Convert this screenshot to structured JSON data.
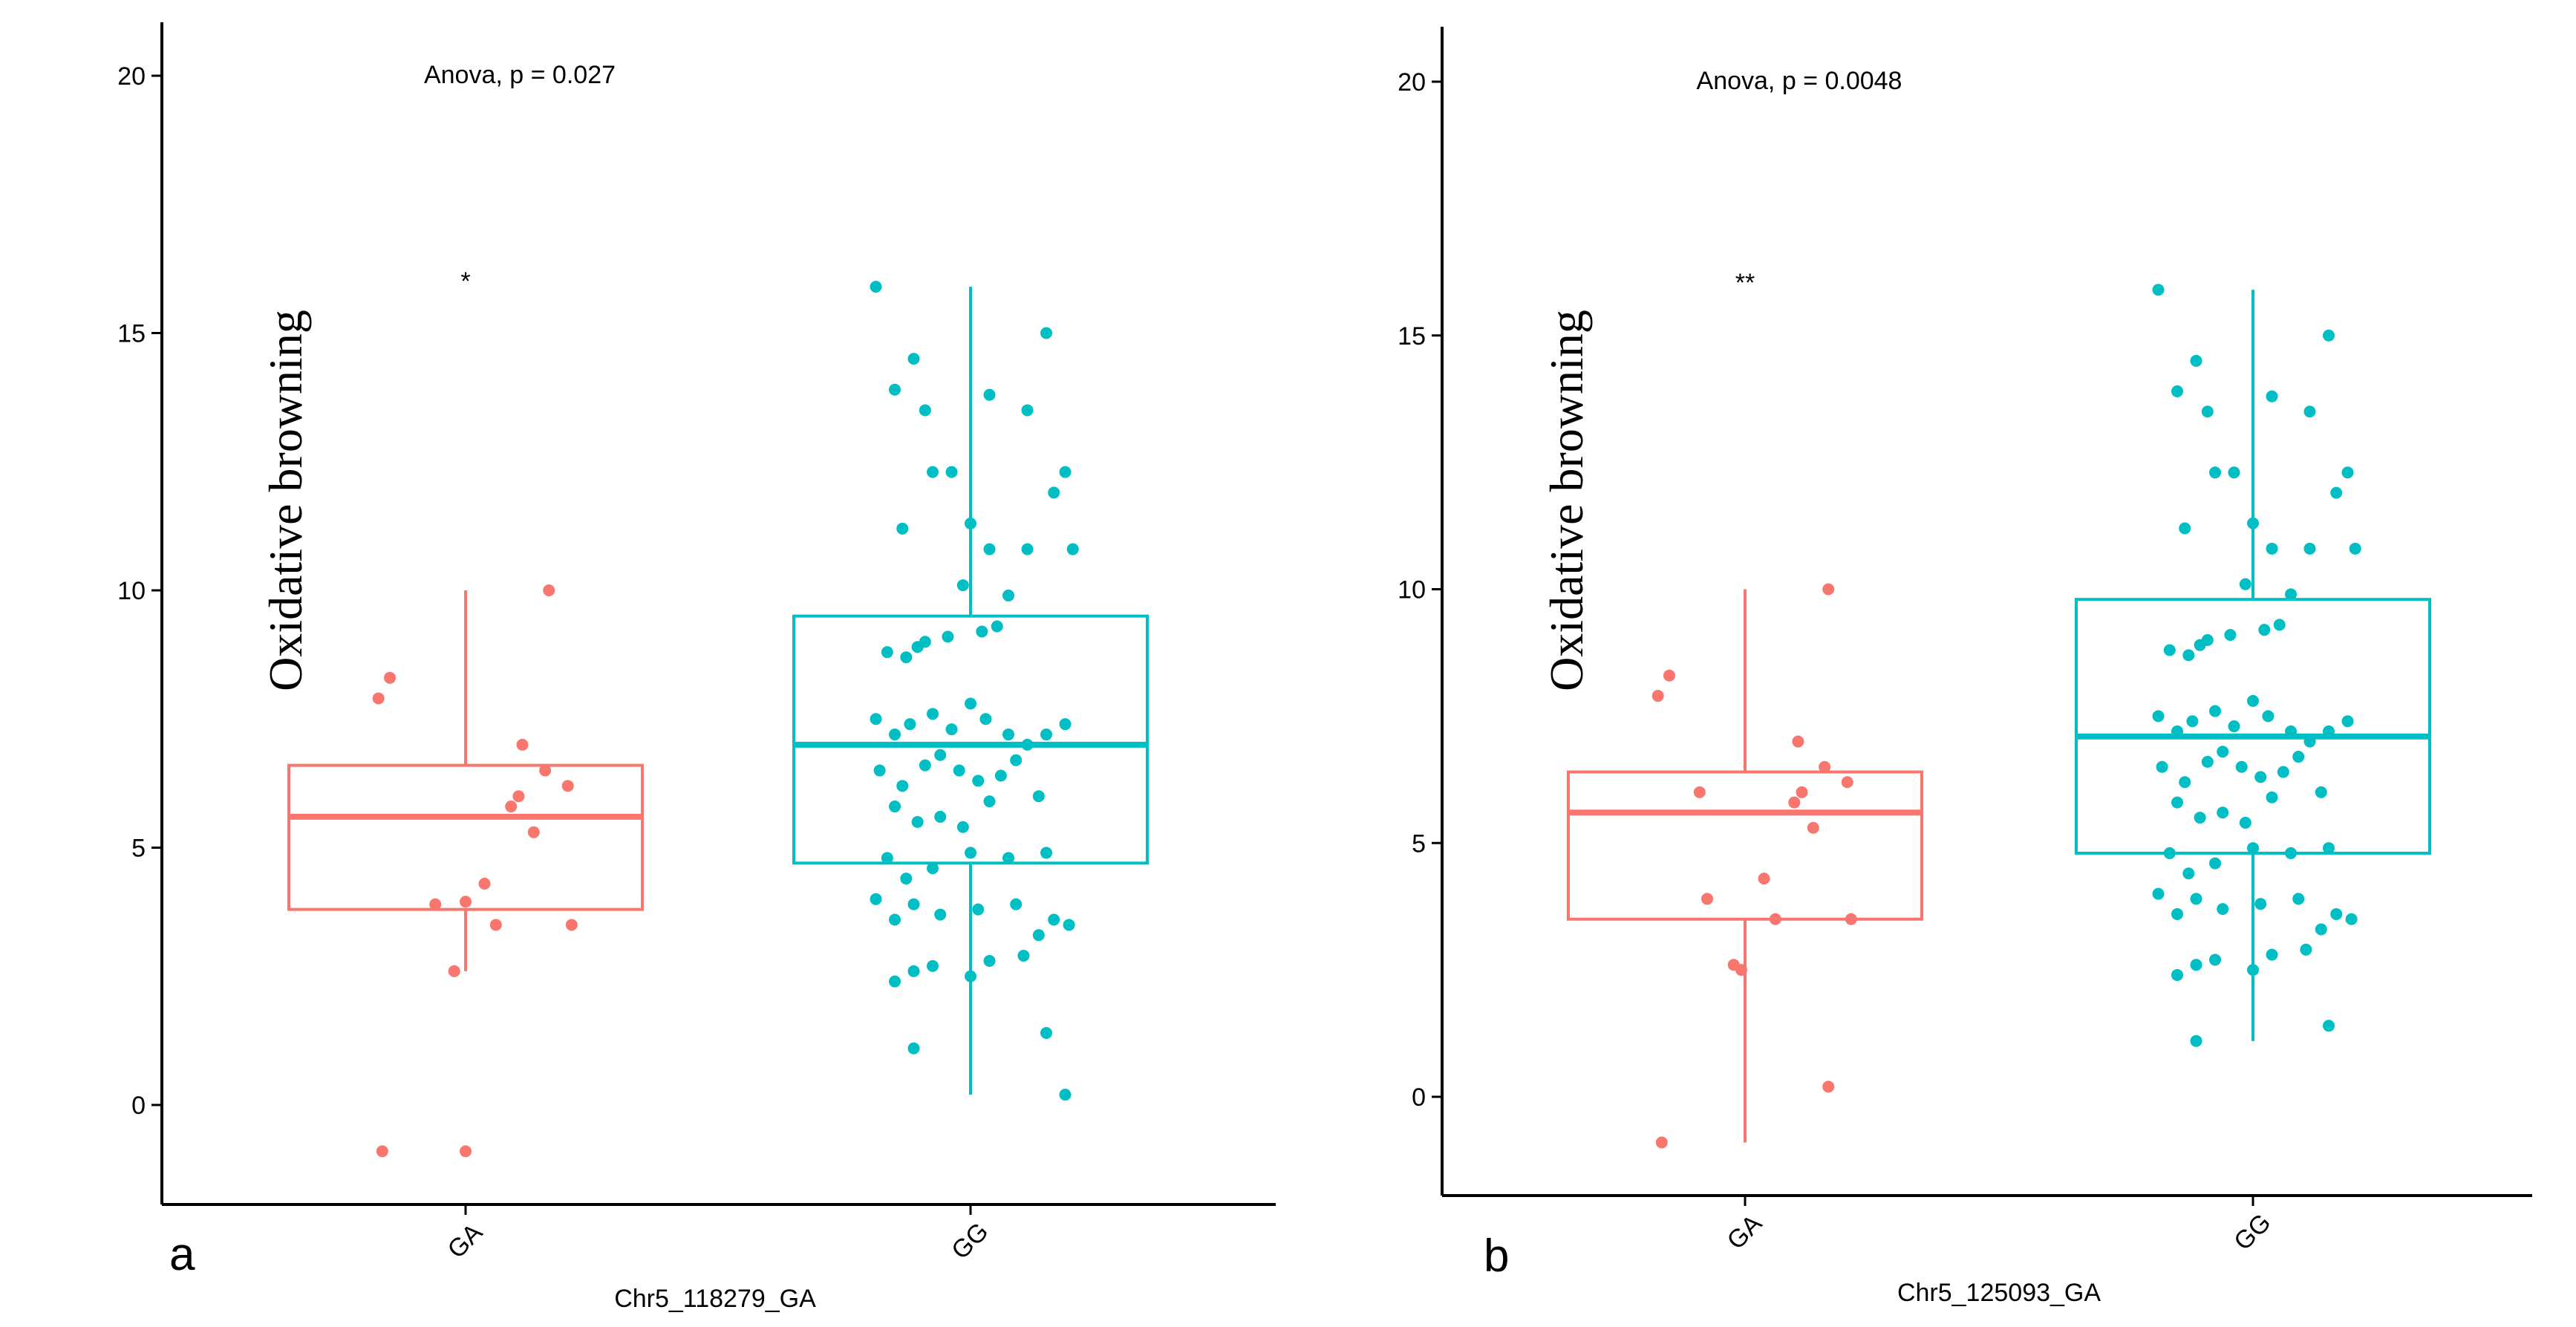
{
  "chart_data": [
    {
      "type": "boxplot",
      "panel_label": "a",
      "annotation": "Anova, p = 0.027",
      "significance": "*",
      "xlabel": "Chr5_118279_GA",
      "ylabel": "Oxidative browning",
      "categories": [
        "GA",
        "GG"
      ],
      "ylim": [
        -2,
        21
      ],
      "yticks": [
        0,
        5,
        10,
        15,
        20
      ],
      "colors": {
        "GA": "#F8766D",
        "GG": "#00BFC4"
      },
      "boxes": [
        {
          "category": "GA",
          "whisker_low": 2.6,
          "q1": 3.8,
          "median": 5.6,
          "q3": 6.6,
          "whisker_high": 10.0
        },
        {
          "category": "GG",
          "whisker_low": 0.2,
          "q1": 4.7,
          "median": 7.0,
          "q3": 9.5,
          "whisker_high": 15.9
        }
      ],
      "points": {
        "GA": [
          [
            -0.23,
            7.9
          ],
          [
            -0.2,
            8.3
          ],
          [
            -0.08,
            3.9
          ],
          [
            0.0,
            3.95
          ],
          [
            0.05,
            4.3
          ],
          [
            0.08,
            3.5
          ],
          [
            0.12,
            5.8
          ],
          [
            0.14,
            6.0
          ],
          [
            0.15,
            7.0
          ],
          [
            0.18,
            5.3
          ],
          [
            0.21,
            6.5
          ],
          [
            0.22,
            10.0
          ],
          [
            0.27,
            6.2
          ],
          [
            0.28,
            3.5
          ],
          [
            -0.03,
            2.6
          ],
          [
            -0.22,
            -0.9
          ],
          [
            0.0,
            -0.9
          ]
        ],
        "GG": [
          [
            -0.25,
            15.9
          ],
          [
            -0.2,
            13.9
          ],
          [
            -0.15,
            14.5
          ],
          [
            -0.12,
            13.5
          ],
          [
            -0.1,
            12.3
          ],
          [
            -0.05,
            12.3
          ],
          [
            0.05,
            13.8
          ],
          [
            0.15,
            13.5
          ],
          [
            0.2,
            15.0
          ],
          [
            0.25,
            12.3
          ],
          [
            0.22,
            11.9
          ],
          [
            -0.18,
            11.2
          ],
          [
            0.0,
            11.3
          ],
          [
            0.05,
            10.8
          ],
          [
            0.15,
            10.8
          ],
          [
            0.27,
            10.8
          ],
          [
            -0.02,
            10.1
          ],
          [
            0.1,
            9.9
          ],
          [
            -0.22,
            8.8
          ],
          [
            -0.17,
            8.7
          ],
          [
            -0.14,
            8.9
          ],
          [
            -0.12,
            9.0
          ],
          [
            -0.06,
            9.1
          ],
          [
            0.03,
            9.2
          ],
          [
            0.07,
            9.3
          ],
          [
            -0.25,
            7.5
          ],
          [
            -0.2,
            7.2
          ],
          [
            -0.16,
            7.4
          ],
          [
            -0.1,
            7.6
          ],
          [
            -0.05,
            7.3
          ],
          [
            0.0,
            7.8
          ],
          [
            0.04,
            7.5
          ],
          [
            0.1,
            7.2
          ],
          [
            0.15,
            7.0
          ],
          [
            0.2,
            7.2
          ],
          [
            0.25,
            7.4
          ],
          [
            -0.24,
            6.5
          ],
          [
            -0.18,
            6.2
          ],
          [
            -0.12,
            6.6
          ],
          [
            -0.08,
            6.8
          ],
          [
            -0.03,
            6.5
          ],
          [
            0.02,
            6.3
          ],
          [
            0.08,
            6.4
          ],
          [
            0.12,
            6.7
          ],
          [
            -0.2,
            5.8
          ],
          [
            -0.14,
            5.5
          ],
          [
            -0.08,
            5.6
          ],
          [
            -0.02,
            5.4
          ],
          [
            0.05,
            5.9
          ],
          [
            0.18,
            6.0
          ],
          [
            -0.22,
            4.8
          ],
          [
            -0.17,
            4.4
          ],
          [
            -0.1,
            4.6
          ],
          [
            0.0,
            4.9
          ],
          [
            0.1,
            4.8
          ],
          [
            0.2,
            4.9
          ],
          [
            -0.25,
            4.0
          ],
          [
            -0.2,
            3.6
          ],
          [
            -0.15,
            3.9
          ],
          [
            -0.08,
            3.7
          ],
          [
            0.02,
            3.8
          ],
          [
            0.12,
            3.9
          ],
          [
            0.22,
            3.6
          ],
          [
            0.26,
            3.5
          ],
          [
            -0.15,
            2.6
          ],
          [
            -0.2,
            2.4
          ],
          [
            0.0,
            2.5
          ],
          [
            0.05,
            2.8
          ],
          [
            0.14,
            2.9
          ],
          [
            0.18,
            3.3
          ],
          [
            -0.1,
            2.7
          ],
          [
            0.2,
            1.4
          ],
          [
            -0.15,
            1.1
          ],
          [
            0.25,
            0.2
          ]
        ]
      }
    },
    {
      "type": "boxplot",
      "panel_label": "b",
      "annotation": "Anova, p = 0.0048",
      "significance": "**",
      "xlabel": "Chr5_125093_GA",
      "ylabel": "Oxidative browning",
      "categories": [
        "GA",
        "GG"
      ],
      "ylim": [
        -2,
        21
      ],
      "yticks": [
        0,
        5,
        10,
        15,
        20
      ],
      "colors": {
        "GA": "#F8766D",
        "GG": "#00BFC4"
      },
      "boxes": [
        {
          "category": "GA",
          "whisker_low": -0.9,
          "q1": 3.5,
          "median": 5.6,
          "q3": 6.4,
          "whisker_high": 10.0
        },
        {
          "category": "GG",
          "whisker_low": 1.1,
          "q1": 4.8,
          "median": 7.1,
          "q3": 9.8,
          "whisker_high": 15.9
        }
      ],
      "points": {
        "GA": [
          [
            -0.23,
            7.9
          ],
          [
            -0.2,
            8.3
          ],
          [
            -0.12,
            6.0
          ],
          [
            -0.1,
            3.9
          ],
          [
            0.05,
            4.3
          ],
          [
            0.08,
            3.5
          ],
          [
            0.13,
            5.8
          ],
          [
            0.15,
            6.0
          ],
          [
            0.14,
            7.0
          ],
          [
            0.18,
            5.3
          ],
          [
            0.21,
            6.5
          ],
          [
            0.22,
            10.0
          ],
          [
            0.27,
            6.2
          ],
          [
            0.28,
            3.5
          ],
          [
            -0.03,
            2.6
          ],
          [
            -0.01,
            2.5
          ],
          [
            0.22,
            0.2
          ],
          [
            -0.22,
            -0.9
          ]
        ],
        "GG": [
          [
            -0.25,
            15.9
          ],
          [
            -0.2,
            13.9
          ],
          [
            -0.15,
            14.5
          ],
          [
            -0.12,
            13.5
          ],
          [
            -0.1,
            12.3
          ],
          [
            -0.05,
            12.3
          ],
          [
            0.05,
            13.8
          ],
          [
            0.15,
            13.5
          ],
          [
            0.2,
            15.0
          ],
          [
            0.25,
            12.3
          ],
          [
            0.22,
            11.9
          ],
          [
            -0.18,
            11.2
          ],
          [
            0.0,
            11.3
          ],
          [
            0.05,
            10.8
          ],
          [
            0.15,
            10.8
          ],
          [
            0.27,
            10.8
          ],
          [
            -0.02,
            10.1
          ],
          [
            0.1,
            9.9
          ],
          [
            -0.22,
            8.8
          ],
          [
            -0.17,
            8.7
          ],
          [
            -0.14,
            8.9
          ],
          [
            -0.12,
            9.0
          ],
          [
            -0.06,
            9.1
          ],
          [
            0.03,
            9.2
          ],
          [
            0.07,
            9.3
          ],
          [
            -0.25,
            7.5
          ],
          [
            -0.2,
            7.2
          ],
          [
            -0.16,
            7.4
          ],
          [
            -0.1,
            7.6
          ],
          [
            -0.05,
            7.3
          ],
          [
            0.0,
            7.8
          ],
          [
            0.04,
            7.5
          ],
          [
            0.1,
            7.2
          ],
          [
            0.15,
            7.0
          ],
          [
            0.2,
            7.2
          ],
          [
            0.25,
            7.4
          ],
          [
            -0.24,
            6.5
          ],
          [
            -0.18,
            6.2
          ],
          [
            -0.12,
            6.6
          ],
          [
            -0.08,
            6.8
          ],
          [
            -0.03,
            6.5
          ],
          [
            0.02,
            6.3
          ],
          [
            0.08,
            6.4
          ],
          [
            0.12,
            6.7
          ],
          [
            -0.2,
            5.8
          ],
          [
            -0.14,
            5.5
          ],
          [
            -0.08,
            5.6
          ],
          [
            -0.02,
            5.4
          ],
          [
            0.05,
            5.9
          ],
          [
            0.18,
            6.0
          ],
          [
            -0.22,
            4.8
          ],
          [
            -0.17,
            4.4
          ],
          [
            -0.1,
            4.6
          ],
          [
            0.0,
            4.9
          ],
          [
            0.1,
            4.8
          ],
          [
            0.2,
            4.9
          ],
          [
            -0.25,
            4.0
          ],
          [
            -0.2,
            3.6
          ],
          [
            -0.15,
            3.9
          ],
          [
            -0.08,
            3.7
          ],
          [
            0.02,
            3.8
          ],
          [
            0.12,
            3.9
          ],
          [
            0.22,
            3.6
          ],
          [
            0.26,
            3.5
          ],
          [
            -0.15,
            2.6
          ],
          [
            -0.2,
            2.4
          ],
          [
            0.0,
            2.5
          ],
          [
            0.05,
            2.8
          ],
          [
            0.14,
            2.9
          ],
          [
            0.18,
            3.3
          ],
          [
            -0.1,
            2.7
          ],
          [
            0.2,
            1.4
          ],
          [
            -0.15,
            1.1
          ]
        ]
      }
    }
  ]
}
